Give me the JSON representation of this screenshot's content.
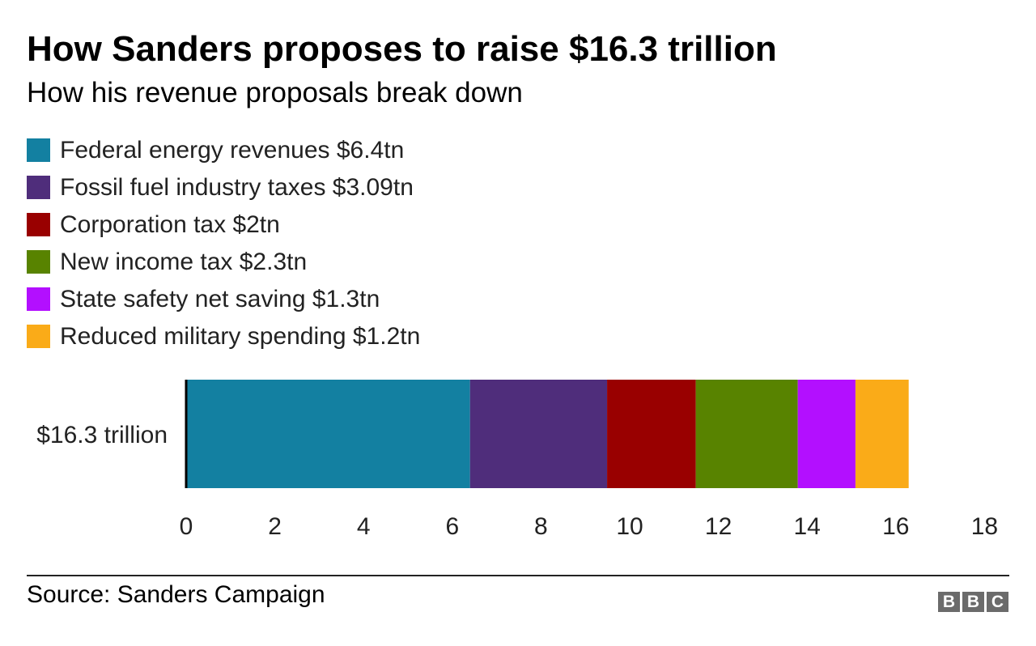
{
  "chart_data": {
    "type": "bar",
    "orientation": "horizontal",
    "stacked": true,
    "title": "How Sanders proposes to raise $16.3 trillion",
    "subtitle": "How his revenue proposals break down",
    "categories": [
      "$16.3 trillion"
    ],
    "series": [
      {
        "name": "Federal energy revenues $6.4tn",
        "values": [
          6.4
        ],
        "color": "#1380a1"
      },
      {
        "name": "Fossil fuel industry taxes $3.09tn",
        "values": [
          3.09
        ],
        "color": "#4f2d7b"
      },
      {
        "name": "Corporation tax $2tn",
        "values": [
          2
        ],
        "color": "#990000"
      },
      {
        "name": "New income tax $2.3tn",
        "values": [
          2.3
        ],
        "color": "#588300"
      },
      {
        "name": "State safety net saving $1.3tn",
        "values": [
          1.3
        ],
        "color": "#b30fff"
      },
      {
        "name": "Reduced military spending $1.2tn",
        "values": [
          1.2
        ],
        "color": "#faab18"
      }
    ],
    "xlim": [
      0,
      18
    ],
    "xticks": [
      "0",
      "2",
      "4",
      "6",
      "8",
      "10",
      "12",
      "14",
      "16",
      "18"
    ],
    "grid": false,
    "legend_position": "top-left"
  },
  "footer": {
    "source": "Source: Sanders Campaign",
    "logo_letters": [
      "B",
      "B",
      "C"
    ]
  }
}
